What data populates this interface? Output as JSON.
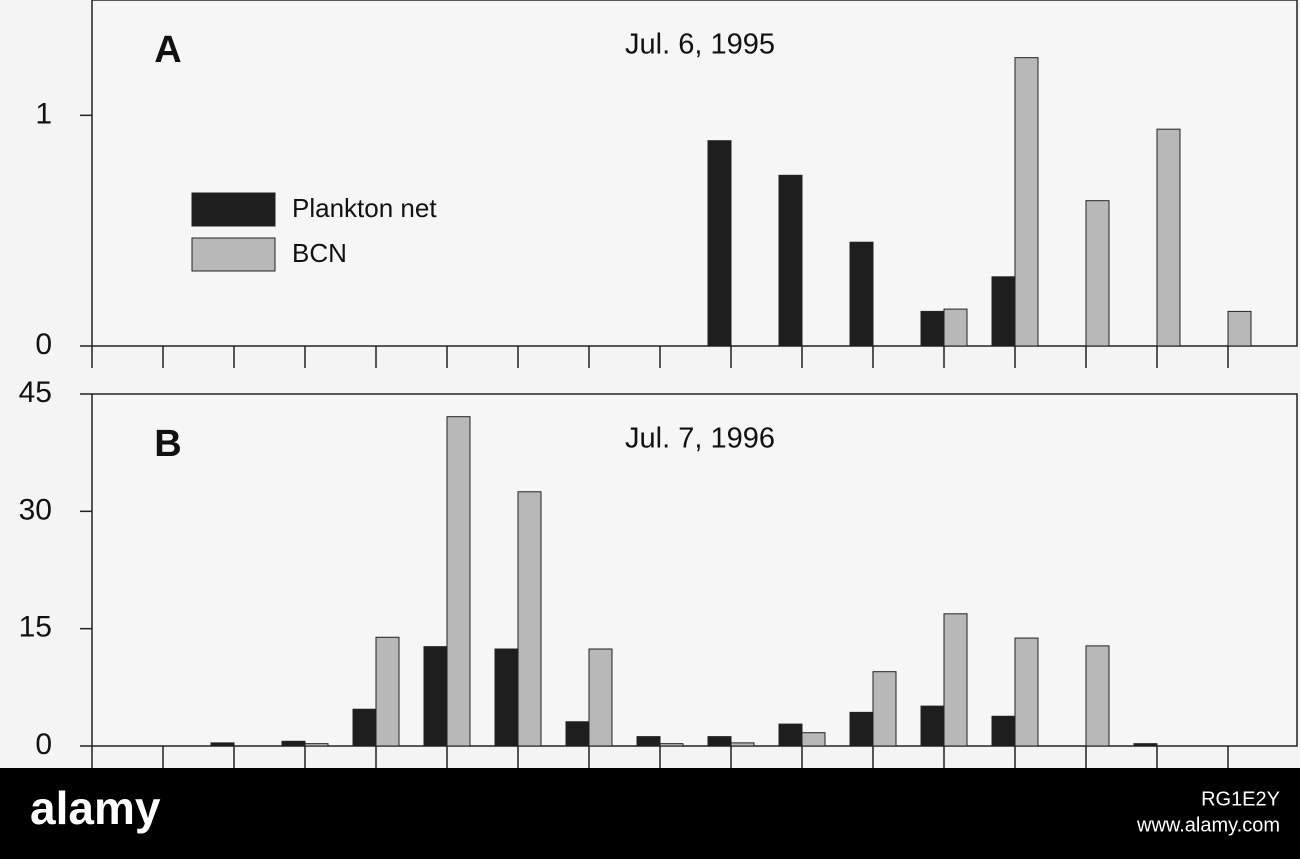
{
  "chart_data": [
    {
      "type": "bar",
      "panel_label": "A",
      "title": "Jul. 6, 1995",
      "categories": [
        null,
        null,
        null,
        null,
        null,
        null,
        null,
        null,
        null,
        null,
        null,
        null,
        null,
        null,
        null,
        null,
        null
      ],
      "series": [
        {
          "name": "Plankton net",
          "color": "#1e1e1e",
          "values": [
            0,
            0,
            0,
            0,
            0,
            0,
            0,
            0,
            0,
            0.89,
            0.74,
            0.45,
            0.15,
            0.3,
            0,
            0,
            0
          ]
        },
        {
          "name": "BCN",
          "color": "#b8b8b8",
          "values": [
            0,
            0,
            0,
            0,
            0,
            0,
            0,
            0,
            0,
            0,
            0,
            0,
            0.16,
            1.25,
            0.63,
            0.94,
            0.15
          ]
        }
      ],
      "ylim": [
        0,
        1.5
      ],
      "yticks": [
        0,
        1
      ],
      "legend": "upper left"
    },
    {
      "type": "bar",
      "panel_label": "B",
      "title": "Jul. 7, 1996",
      "categories": [
        null,
        null,
        null,
        null,
        null,
        null,
        null,
        null,
        null,
        null,
        null,
        null,
        null,
        null,
        null,
        null,
        null
      ],
      "series": [
        {
          "color": "#1e1e1e",
          "values": [
            0,
            0,
            0.4,
            0.6,
            4.7,
            12.7,
            12.4,
            3.1,
            1.2,
            1.2,
            2.8,
            4.3,
            5.1,
            3.8,
            0,
            0.3,
            0
          ]
        },
        {
          "color": "#b8b8b8",
          "values": [
            0,
            0,
            0,
            0.3,
            13.9,
            42.1,
            32.5,
            12.4,
            0.3,
            0.4,
            1.7,
            9.5,
            16.9,
            13.8,
            12.8,
            0,
            0
          ]
        }
      ],
      "ylim": [
        0,
        45
      ],
      "yticks": [
        0,
        15,
        30,
        45
      ]
    }
  ],
  "footer": {
    "brand": "alamy",
    "image_id": "RG1E2Y",
    "url": "www.alamy.com"
  }
}
